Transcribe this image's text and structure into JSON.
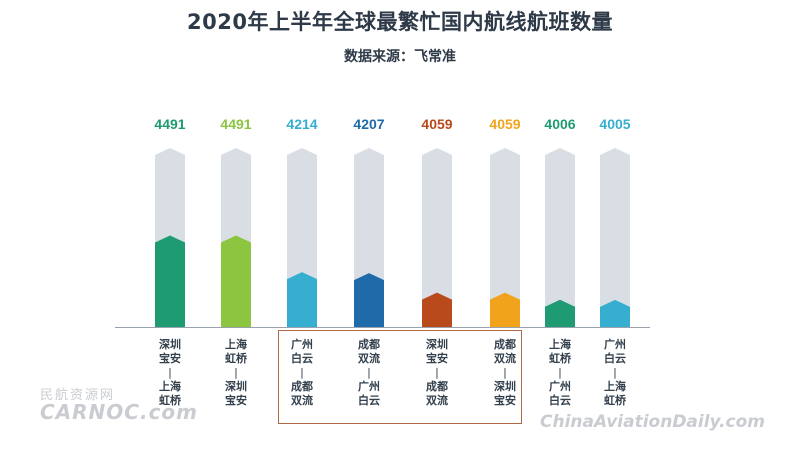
{
  "title": "2020年上半年全球最繁忙国内航线航班数量",
  "subtitle": "数据来源：飞常准",
  "watermarks": {
    "left_line1": "民航资源网",
    "left_line2": "CARNOC.com",
    "right": "ChinaAviationDaily.com"
  },
  "chart_data": {
    "type": "bar",
    "title": "2020年上半年全球最繁忙国内航线航班数量",
    "subtitle": "数据来源：飞常准",
    "categories": [
      "深圳宝安—上海虹桥",
      "上海虹桥—深圳宝安",
      "广州白云—成都双流",
      "成都双流—广州白云",
      "深圳宝安—成都双流",
      "成都双流—深圳宝安",
      "上海虹桥—广州白云",
      "广州白云—上海虹桥"
    ],
    "values": [
      4491,
      4491,
      4214,
      4207,
      4059,
      4059,
      4006,
      4005
    ],
    "value_labels": [
      "4491",
      "4491",
      "4214",
      "4207",
      "4059",
      "4059",
      "4006",
      "4005"
    ],
    "route_labels": [
      {
        "from1": "深圳",
        "from2": "宝安",
        "sep": "|",
        "to1": "上海",
        "to2": "虹桥"
      },
      {
        "from1": "上海",
        "from2": "虹桥",
        "sep": "|",
        "to1": "深圳",
        "to2": "宝安"
      },
      {
        "from1": "广州",
        "from2": "白云",
        "sep": "|",
        "to1": "成都",
        "to2": "双流"
      },
      {
        "from1": "成都",
        "from2": "双流",
        "sep": "|",
        "to1": "广州",
        "to2": "白云"
      },
      {
        "from1": "深圳",
        "from2": "宝安",
        "sep": "|",
        "to1": "成都",
        "to2": "双流"
      },
      {
        "from1": "成都",
        "from2": "双流",
        "sep": "|",
        "to1": "深圳",
        "to2": "宝安"
      },
      {
        "from1": "上海",
        "from2": "虹桥",
        "sep": "|",
        "to1": "广州",
        "to2": "白云"
      },
      {
        "from1": "广州",
        "from2": "白云",
        "sep": "|",
        "to1": "上海",
        "to2": "虹桥"
      }
    ],
    "colors": [
      "#1e9b73",
      "#8cc540",
      "#35aed0",
      "#1f6aa8",
      "#b84a1b",
      "#f1a31c",
      "#1e9b73",
      "#35aed0"
    ],
    "track_color": "#d9dee4",
    "ylim": [
      3800,
      4600
    ],
    "highlighted_categories": [
      2,
      3,
      4,
      5
    ],
    "grid": false
  }
}
